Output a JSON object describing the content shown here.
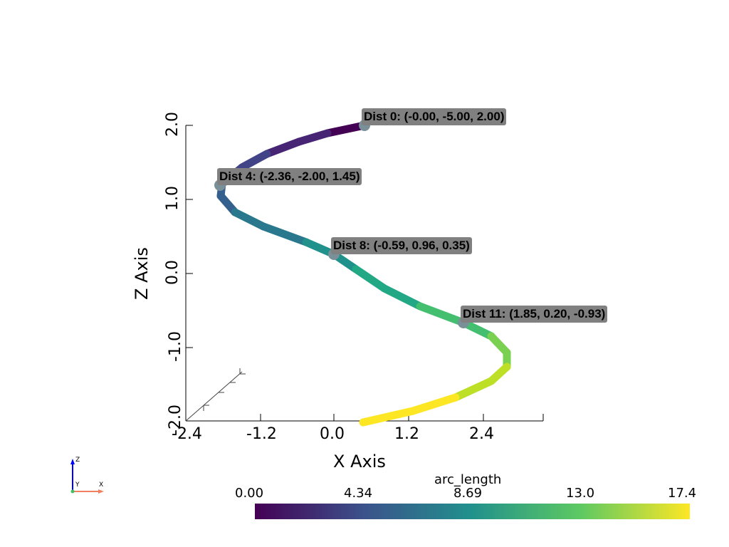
{
  "chart_data": {
    "type": "line",
    "xlabel": "X Axis",
    "ylabel": "Z Axis",
    "x_ticks": [
      "-2.4",
      "-1.2",
      "0.0",
      "1.2",
      "2.4"
    ],
    "z_ticks": [
      "2.0",
      "1.0",
      "0.0",
      "-1.0",
      "-2.0"
    ],
    "xlim": [
      -2.4,
      3.2
    ],
    "zlim": [
      -2.0,
      2.0
    ],
    "point_labels": [
      {
        "label": "Dist 0: (-0.00, -5.00, 2.00)",
        "x": -0.0,
        "y": -5.0,
        "z": 2.0
      },
      {
        "label": "Dist 4: (-2.36, -2.00, 1.45)",
        "x": -2.36,
        "y": -2.0,
        "z": 1.45
      },
      {
        "label": "Dist 8: (-0.59, 0.96, 0.35)",
        "x": -0.59,
        "y": 0.96,
        "z": 0.35
      },
      {
        "label": "Dist 11: (1.85, 0.20, -0.93)",
        "x": 1.85,
        "y": 0.2,
        "z": -0.93
      }
    ],
    "colorbar": {
      "title": "arc_length",
      "ticks": [
        "0.00",
        "4.34",
        "8.69",
        "13.0",
        "17.4"
      ],
      "range": [
        0,
        17.4
      ],
      "colormap": "viridis"
    }
  },
  "orientation_widget": {
    "x": "X",
    "y": "Y",
    "z": "Z",
    "x_color": "#f08060",
    "y_color": "#40c060",
    "z_color": "#0000ff"
  }
}
